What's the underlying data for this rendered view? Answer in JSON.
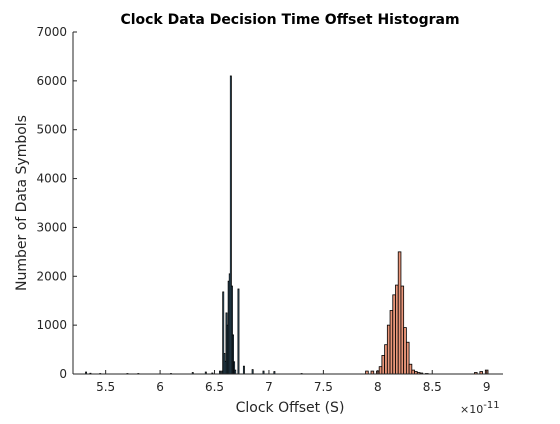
{
  "chart_data": {
    "type": "bar",
    "title": "Clock Data Decision Time Offset Histogram",
    "xlabel": "Clock Offset (S)",
    "ylabel": "Number of Data Symbols",
    "x_exponent_base": "×10",
    "x_exponent_power": "-11",
    "xlim": [
      5.2,
      9.15
    ],
    "ylim": [
      0,
      7000
    ],
    "xticks": [
      5.5,
      6,
      6.5,
      7,
      7.5,
      8,
      8.5,
      9
    ],
    "xtick_labels": [
      "5.5",
      "6",
      "6.5",
      "7",
      "7.5",
      "8",
      "8.5",
      "9"
    ],
    "yticks": [
      0,
      1000,
      2000,
      3000,
      4000,
      5000,
      6000,
      7000
    ],
    "ytick_labels": [
      "0",
      "1000",
      "2000",
      "3000",
      "4000",
      "5000",
      "6000",
      "7000"
    ],
    "grid": false,
    "series": [
      {
        "color": "#6baed6",
        "bin_width": 0.01,
        "x": [
          5.32,
          5.36,
          5.45,
          5.7,
          5.8,
          6.1,
          6.3,
          6.42,
          6.48,
          6.55,
          6.57,
          6.58,
          6.59,
          6.6,
          6.61,
          6.62,
          6.63,
          6.64,
          6.65,
          6.66,
          6.67,
          6.68,
          6.69,
          6.72,
          6.77,
          6.85,
          6.95,
          7.05,
          7.3
        ],
        "values": [
          40,
          15,
          10,
          10,
          10,
          10,
          30,
          40,
          20,
          60,
          60,
          1680,
          420,
          260,
          1250,
          1000,
          1900,
          2050,
          6100,
          1800,
          800,
          250,
          80,
          1740,
          160,
          90,
          60,
          50,
          10
        ]
      },
      {
        "color": "#e9967a",
        "bin_width": 0.025,
        "x": [
          7.9,
          7.95,
          8.0,
          8.025,
          8.05,
          8.075,
          8.1,
          8.125,
          8.15,
          8.175,
          8.2,
          8.225,
          8.25,
          8.275,
          8.3,
          8.325,
          8.35,
          8.375,
          8.4,
          8.45,
          8.9,
          8.95,
          9.0
        ],
        "values": [
          60,
          60,
          60,
          150,
          380,
          600,
          1000,
          1300,
          1620,
          1820,
          2500,
          1800,
          950,
          650,
          200,
          80,
          50,
          30,
          20,
          10,
          30,
          50,
          80
        ]
      }
    ]
  }
}
